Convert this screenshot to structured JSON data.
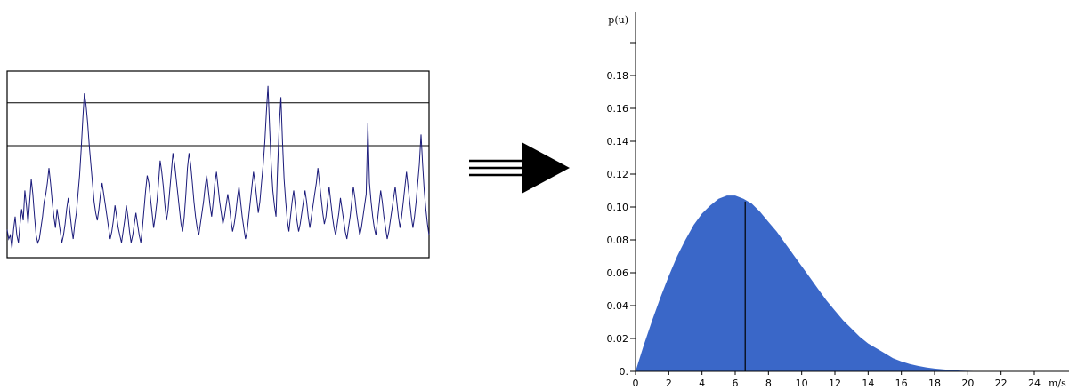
{
  "figure": {
    "colors": {
      "trace": "#1a1a7a",
      "area": "#3a67c8",
      "axis": "#000000",
      "box": "#000000"
    },
    "arrow": {
      "icon": "triple-line-right-arrow-icon"
    }
  },
  "chart_data": [
    {
      "type": "line",
      "title": "",
      "xlabel": "",
      "ylabel": "",
      "ylim": [
        0,
        1
      ],
      "reference_lines_y": [
        0.25,
        0.6,
        0.83
      ],
      "series": [
        {
          "values": [
            0.15,
            0.1,
            0.12,
            0.05,
            0.15,
            0.22,
            0.12,
            0.08,
            0.18,
            0.26,
            0.2,
            0.36,
            0.28,
            0.18,
            0.3,
            0.42,
            0.34,
            0.22,
            0.12,
            0.08,
            0.1,
            0.16,
            0.22,
            0.3,
            0.34,
            0.4,
            0.48,
            0.4,
            0.3,
            0.22,
            0.16,
            0.26,
            0.2,
            0.14,
            0.08,
            0.12,
            0.18,
            0.26,
            0.32,
            0.24,
            0.16,
            0.1,
            0.18,
            0.24,
            0.34,
            0.44,
            0.58,
            0.74,
            0.88,
            0.82,
            0.72,
            0.6,
            0.5,
            0.4,
            0.3,
            0.24,
            0.2,
            0.26,
            0.34,
            0.4,
            0.34,
            0.28,
            0.22,
            0.16,
            0.1,
            0.14,
            0.2,
            0.28,
            0.22,
            0.16,
            0.12,
            0.08,
            0.14,
            0.2,
            0.28,
            0.22,
            0.14,
            0.08,
            0.12,
            0.18,
            0.24,
            0.18,
            0.12,
            0.08,
            0.16,
            0.26,
            0.36,
            0.44,
            0.4,
            0.32,
            0.24,
            0.16,
            0.22,
            0.3,
            0.4,
            0.52,
            0.46,
            0.38,
            0.28,
            0.2,
            0.26,
            0.36,
            0.46,
            0.56,
            0.5,
            0.42,
            0.34,
            0.26,
            0.18,
            0.14,
            0.22,
            0.34,
            0.48,
            0.56,
            0.5,
            0.4,
            0.3,
            0.22,
            0.16,
            0.12,
            0.18,
            0.24,
            0.3,
            0.38,
            0.44,
            0.36,
            0.28,
            0.22,
            0.3,
            0.4,
            0.46,
            0.38,
            0.3,
            0.24,
            0.18,
            0.22,
            0.28,
            0.34,
            0.28,
            0.2,
            0.14,
            0.18,
            0.24,
            0.32,
            0.38,
            0.3,
            0.22,
            0.16,
            0.1,
            0.14,
            0.22,
            0.3,
            0.38,
            0.46,
            0.4,
            0.32,
            0.24,
            0.3,
            0.4,
            0.5,
            0.62,
            0.78,
            0.92,
            0.7,
            0.5,
            0.36,
            0.28,
            0.22,
            0.48,
            0.7,
            0.86,
            0.62,
            0.42,
            0.3,
            0.2,
            0.14,
            0.22,
            0.3,
            0.36,
            0.28,
            0.2,
            0.14,
            0.18,
            0.24,
            0.3,
            0.36,
            0.3,
            0.22,
            0.16,
            0.22,
            0.28,
            0.34,
            0.4,
            0.48,
            0.4,
            0.32,
            0.24,
            0.18,
            0.22,
            0.3,
            0.38,
            0.3,
            0.22,
            0.16,
            0.12,
            0.18,
            0.24,
            0.32,
            0.26,
            0.2,
            0.14,
            0.1,
            0.16,
            0.22,
            0.3,
            0.38,
            0.32,
            0.24,
            0.18,
            0.12,
            0.16,
            0.22,
            0.28,
            0.34,
            0.72,
            0.4,
            0.3,
            0.22,
            0.16,
            0.12,
            0.2,
            0.28,
            0.36,
            0.3,
            0.22,
            0.16,
            0.1,
            0.14,
            0.2,
            0.26,
            0.32,
            0.38,
            0.3,
            0.22,
            0.16,
            0.22,
            0.3,
            0.38,
            0.46,
            0.38,
            0.3,
            0.22,
            0.16,
            0.22,
            0.3,
            0.4,
            0.5,
            0.66,
            0.5,
            0.36,
            0.26,
            0.18,
            0.12
          ]
        }
      ]
    },
    {
      "type": "area",
      "title": "",
      "xlabel": "m/s",
      "ylabel": "p(u)",
      "xlim": [
        0,
        26
      ],
      "ylim": [
        0,
        0.2
      ],
      "x_ticks": [
        "0",
        "2",
        "4",
        "6",
        "8",
        "10",
        "12",
        "14",
        "16",
        "18",
        "20",
        "22",
        "24"
      ],
      "y_ticks": [
        "0.",
        "0.02",
        "0.04",
        "0.06",
        "0.08",
        "0.10",
        "0.12",
        "0.14",
        "0.16",
        "0.18"
      ],
      "mean_line_x": 6.6,
      "series": [
        {
          "x": [
            0,
            0.5,
            1,
            1.5,
            2,
            2.5,
            3,
            3.5,
            4,
            4.5,
            5,
            5.5,
            6,
            6.5,
            7,
            7.5,
            8,
            8.5,
            9,
            9.5,
            10,
            10.5,
            11,
            11.5,
            12,
            12.5,
            13,
            13.5,
            14,
            14.5,
            15,
            15.5,
            16,
            16.5,
            17,
            17.5,
            18,
            18.5,
            19,
            19.5,
            20,
            21,
            22,
            23,
            24,
            25,
            26
          ],
          "y": [
            0,
            0.016,
            0.031,
            0.045,
            0.058,
            0.07,
            0.08,
            0.089,
            0.096,
            0.101,
            0.105,
            0.107,
            0.107,
            0.105,
            0.102,
            0.097,
            0.091,
            0.085,
            0.078,
            0.071,
            0.064,
            0.057,
            0.05,
            0.043,
            0.037,
            0.031,
            0.026,
            0.021,
            0.017,
            0.014,
            0.011,
            0.008,
            0.006,
            0.0045,
            0.0033,
            0.0024,
            0.0017,
            0.0012,
            0.0008,
            0.0005,
            0.0003,
            0.0001,
            5e-05,
            0,
            0,
            0,
            0
          ]
        }
      ]
    }
  ]
}
